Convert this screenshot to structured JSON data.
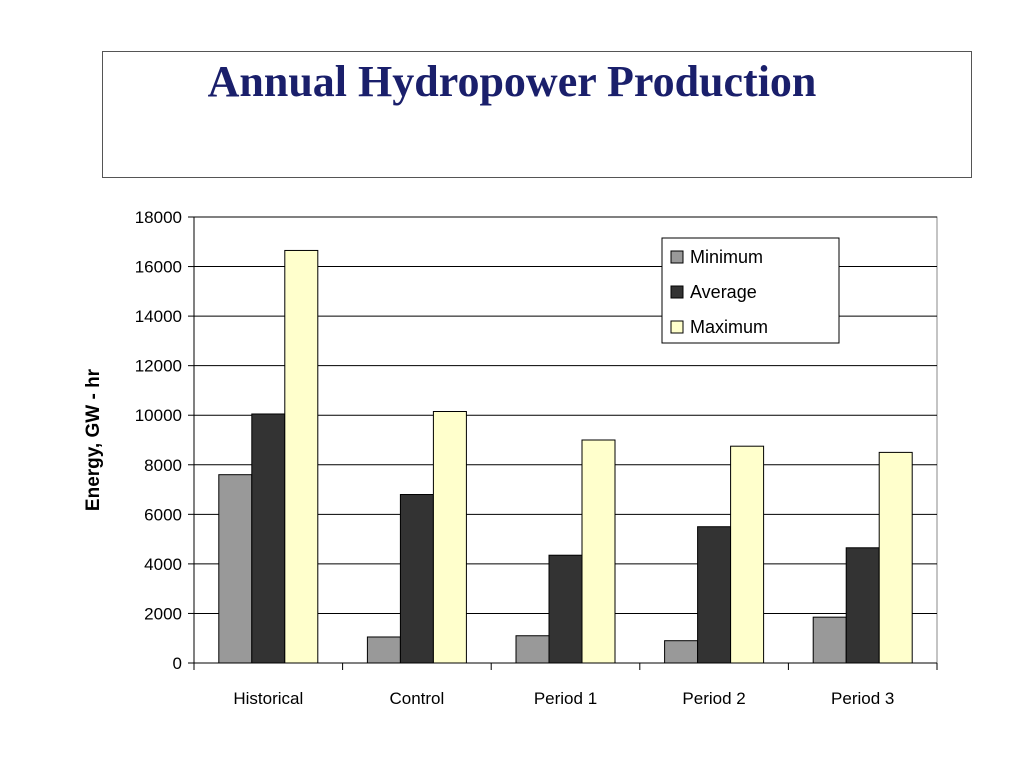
{
  "title": "Annual Hydropower Production",
  "chart_data": {
    "type": "bar",
    "categories": [
      "Historical",
      "Control",
      "Period 1",
      "Period 2",
      "Period 3"
    ],
    "series": [
      {
        "name": "Minimum",
        "color": "#999999",
        "values": [
          7600,
          1050,
          1100,
          900,
          1850
        ]
      },
      {
        "name": "Average",
        "color": "#333333",
        "values": [
          10050,
          6800,
          4350,
          5500,
          4650
        ]
      },
      {
        "name": "Maximum",
        "color": "#ffffcc",
        "values": [
          16650,
          10150,
          9000,
          8750,
          8500
        ]
      }
    ],
    "xlabel": "",
    "ylabel": "Energy, GW - hr",
    "ylim": [
      0,
      18000
    ],
    "yticks": [
      "0",
      "2000",
      "4000",
      "6000",
      "8000",
      "10000",
      "12000",
      "14000",
      "16000",
      "18000"
    ],
    "grid": true,
    "legend_position": "top-right"
  }
}
